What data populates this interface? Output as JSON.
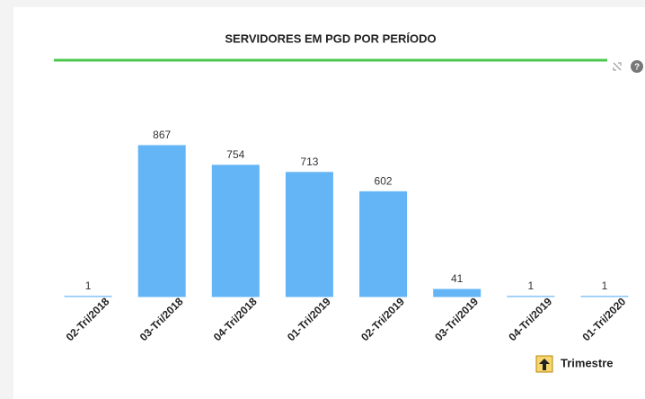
{
  "chart_data": {
    "type": "bar",
    "title": "SERVIDORES EM PGD POR PERÍODO",
    "categories": [
      "02-Tri/2018",
      "03-Tri/2018",
      "04-Tri/2018",
      "01-Tri/2019",
      "02-Tri/2019",
      "03-Tri/2019",
      "04-Tri/2019",
      "01-Tri/2020"
    ],
    "values": [
      1,
      867,
      754,
      713,
      602,
      41,
      1,
      1
    ],
    "color": "#64b5f6",
    "x_label": "Trimestre"
  }
}
